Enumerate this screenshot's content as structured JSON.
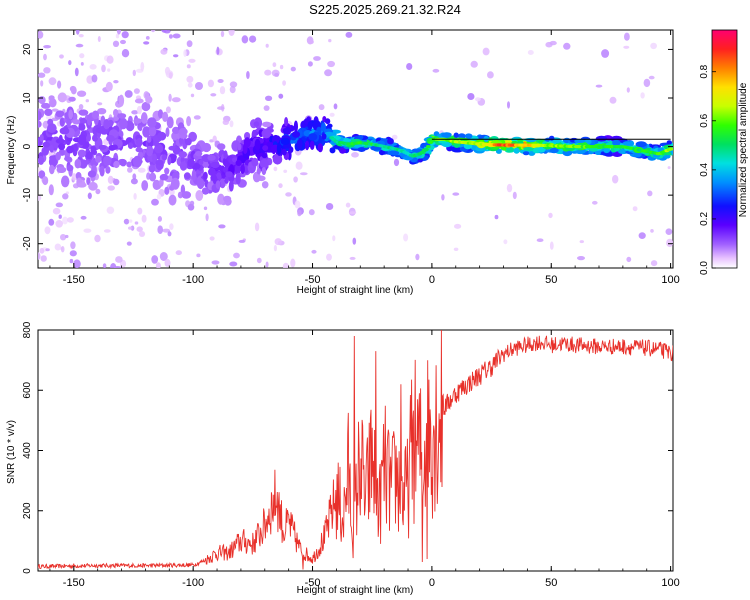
{
  "title": "S225.2025.269.21.32.R24",
  "chart_data": [
    {
      "type": "heatmap",
      "name": "spectrogram",
      "xlabel": "Height of straight line (km)",
      "ylabel": "Frequency (Hz)",
      "xlim": [
        -165,
        101
      ],
      "ylim": [
        -25,
        24
      ],
      "xticks": [
        -150,
        -100,
        -50,
        0,
        50,
        100
      ],
      "yticks": [
        -20,
        -10,
        0,
        10,
        20
      ],
      "colorbar": {
        "label": "Normalized spectral amplitude",
        "range": [
          0,
          0.97
        ],
        "ticks": [
          0.0,
          0.2,
          0.4,
          0.6,
          0.8
        ],
        "tick_labels": [
          "0.0",
          "0.2",
          "0.4",
          "0.6",
          "0.8"
        ]
      },
      "ridge_trace": {
        "x": [
          -165,
          -140,
          -120,
          -100,
          -95,
          -85,
          -80,
          -75,
          -65,
          -58,
          -50,
          -45,
          -40,
          -35,
          -30,
          -25,
          -20,
          -15,
          -12,
          -8,
          -5,
          -2,
          0,
          5,
          10,
          20,
          30,
          40,
          50,
          60,
          70,
          80,
          85,
          90,
          95,
          100
        ],
        "freq": [
          1,
          0.5,
          0.5,
          -3,
          -5,
          -5,
          -3,
          0,
          0.5,
          1.5,
          2.5,
          3,
          1,
          0.5,
          0.8,
          0.5,
          0,
          -0.5,
          -1,
          -2,
          -1.5,
          -0.5,
          1.5,
          1.5,
          1,
          0.5,
          0.3,
          0.3,
          0.2,
          0,
          0,
          0,
          -0.5,
          -1,
          -1.5,
          -0.5
        ]
      },
      "amplitude_by_height": {
        "x": [
          -165,
          -100,
          -80,
          -70,
          -60,
          -45,
          -40,
          -30,
          -10,
          0,
          20,
          30,
          50,
          80,
          90,
          100
        ],
        "amplitude": [
          0.15,
          0.15,
          0.2,
          0.25,
          0.35,
          0.4,
          0.55,
          0.6,
          0.5,
          0.65,
          0.75,
          0.95,
          0.7,
          0.6,
          0.6,
          0.7
        ]
      },
      "reference_line": {
        "x_start": 0,
        "x_end": 100,
        "freq": 1.5,
        "note": "black model line along the ridge"
      }
    },
    {
      "type": "line",
      "name": "snr",
      "xlabel": "Height of straight line (km)",
      "ylabel": "SNR (10 * v/v)",
      "xlim": [
        -165,
        101
      ],
      "ylim": [
        0,
        800
      ],
      "xticks": [
        -150,
        -100,
        -50,
        0,
        50,
        100
      ],
      "yticks": [
        0,
        200,
        400,
        600,
        800
      ],
      "series": [
        {
          "name": "SNR",
          "color": "#e8302a",
          "x": [
            -165,
            -140,
            -120,
            -100,
            -95,
            -90,
            -85,
            -80,
            -75,
            -70,
            -68,
            -65,
            -62,
            -60,
            -55,
            -50,
            -45,
            -40,
            -37,
            -35,
            -33,
            -30,
            -28,
            -25,
            -22,
            -20,
            -17,
            -15,
            -12,
            -10,
            -8,
            -5,
            -3,
            -1,
            0,
            2,
            5,
            10,
            15,
            20,
            25,
            30,
            35,
            40,
            45,
            50,
            55,
            60,
            70,
            80,
            90,
            95,
            100
          ],
          "y": [
            15,
            18,
            18,
            20,
            35,
            60,
            60,
            100,
            90,
            150,
            200,
            250,
            130,
            160,
            70,
            40,
            110,
            250,
            180,
            330,
            120,
            390,
            230,
            380,
            210,
            350,
            270,
            320,
            240,
            280,
            450,
            390,
            420,
            480,
            480,
            500,
            540,
            590,
            620,
            650,
            680,
            720,
            740,
            750,
            760,
            750,
            755,
            750,
            745,
            745,
            740,
            735,
            725
          ]
        }
      ],
      "extremes": {
        "x": [
          -54,
          -32.5,
          -23.5,
          -13,
          -4,
          -2
        ],
        "y": [
          5,
          780,
          730,
          620,
          30,
          40
        ]
      }
    }
  ]
}
